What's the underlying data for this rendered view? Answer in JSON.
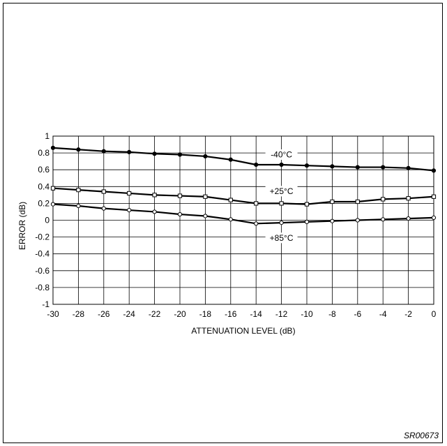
{
  "figure_id": "SR00673",
  "chart_data": {
    "type": "line",
    "title": "",
    "xlabel": "ATTENUATION LEVEL (dB)",
    "ylabel": "ERROR (dB)",
    "xlim": [
      -30,
      0
    ],
    "ylim": [
      -1,
      1
    ],
    "grid": true,
    "x_ticks": [
      "-30",
      "-28",
      "-26",
      "-24",
      "-22",
      "-20",
      "-18",
      "-16",
      "-14",
      "-12",
      "-10",
      "-8",
      "-6",
      "-4",
      "-2",
      "0"
    ],
    "y_ticks": [
      "1",
      "0.8",
      "0.6",
      "0.4",
      "0.2",
      "0",
      "-0.2",
      "-0.4",
      "-0.6",
      "-0.8",
      "-1"
    ],
    "x": [
      -30,
      -28,
      -26,
      -24,
      -22,
      -20,
      -18,
      -16,
      -14,
      -12,
      -10,
      -8,
      -6,
      -4,
      -2,
      0
    ],
    "series": [
      {
        "name": "-40°C",
        "marker": "filled-circle",
        "values": [
          0.86,
          0.84,
          0.82,
          0.81,
          0.79,
          0.78,
          0.76,
          0.72,
          0.66,
          0.66,
          0.65,
          0.64,
          0.63,
          0.63,
          0.62,
          0.59
        ]
      },
      {
        "name": "+25°C",
        "marker": "open-square",
        "values": [
          0.38,
          0.36,
          0.34,
          0.32,
          0.3,
          0.29,
          0.28,
          0.24,
          0.2,
          0.2,
          0.19,
          0.22,
          0.22,
          0.25,
          0.26,
          0.28
        ]
      },
      {
        "name": "+85°C",
        "marker": "open-circle",
        "values": [
          0.19,
          0.17,
          0.14,
          0.12,
          0.1,
          0.07,
          0.05,
          0.01,
          -0.04,
          -0.03,
          -0.02,
          -0.01,
          0.0,
          0.01,
          0.02,
          0.03
        ]
      }
    ],
    "colors": {
      "line": "#000000",
      "grid": "#000000",
      "background": "#ffffff"
    }
  }
}
